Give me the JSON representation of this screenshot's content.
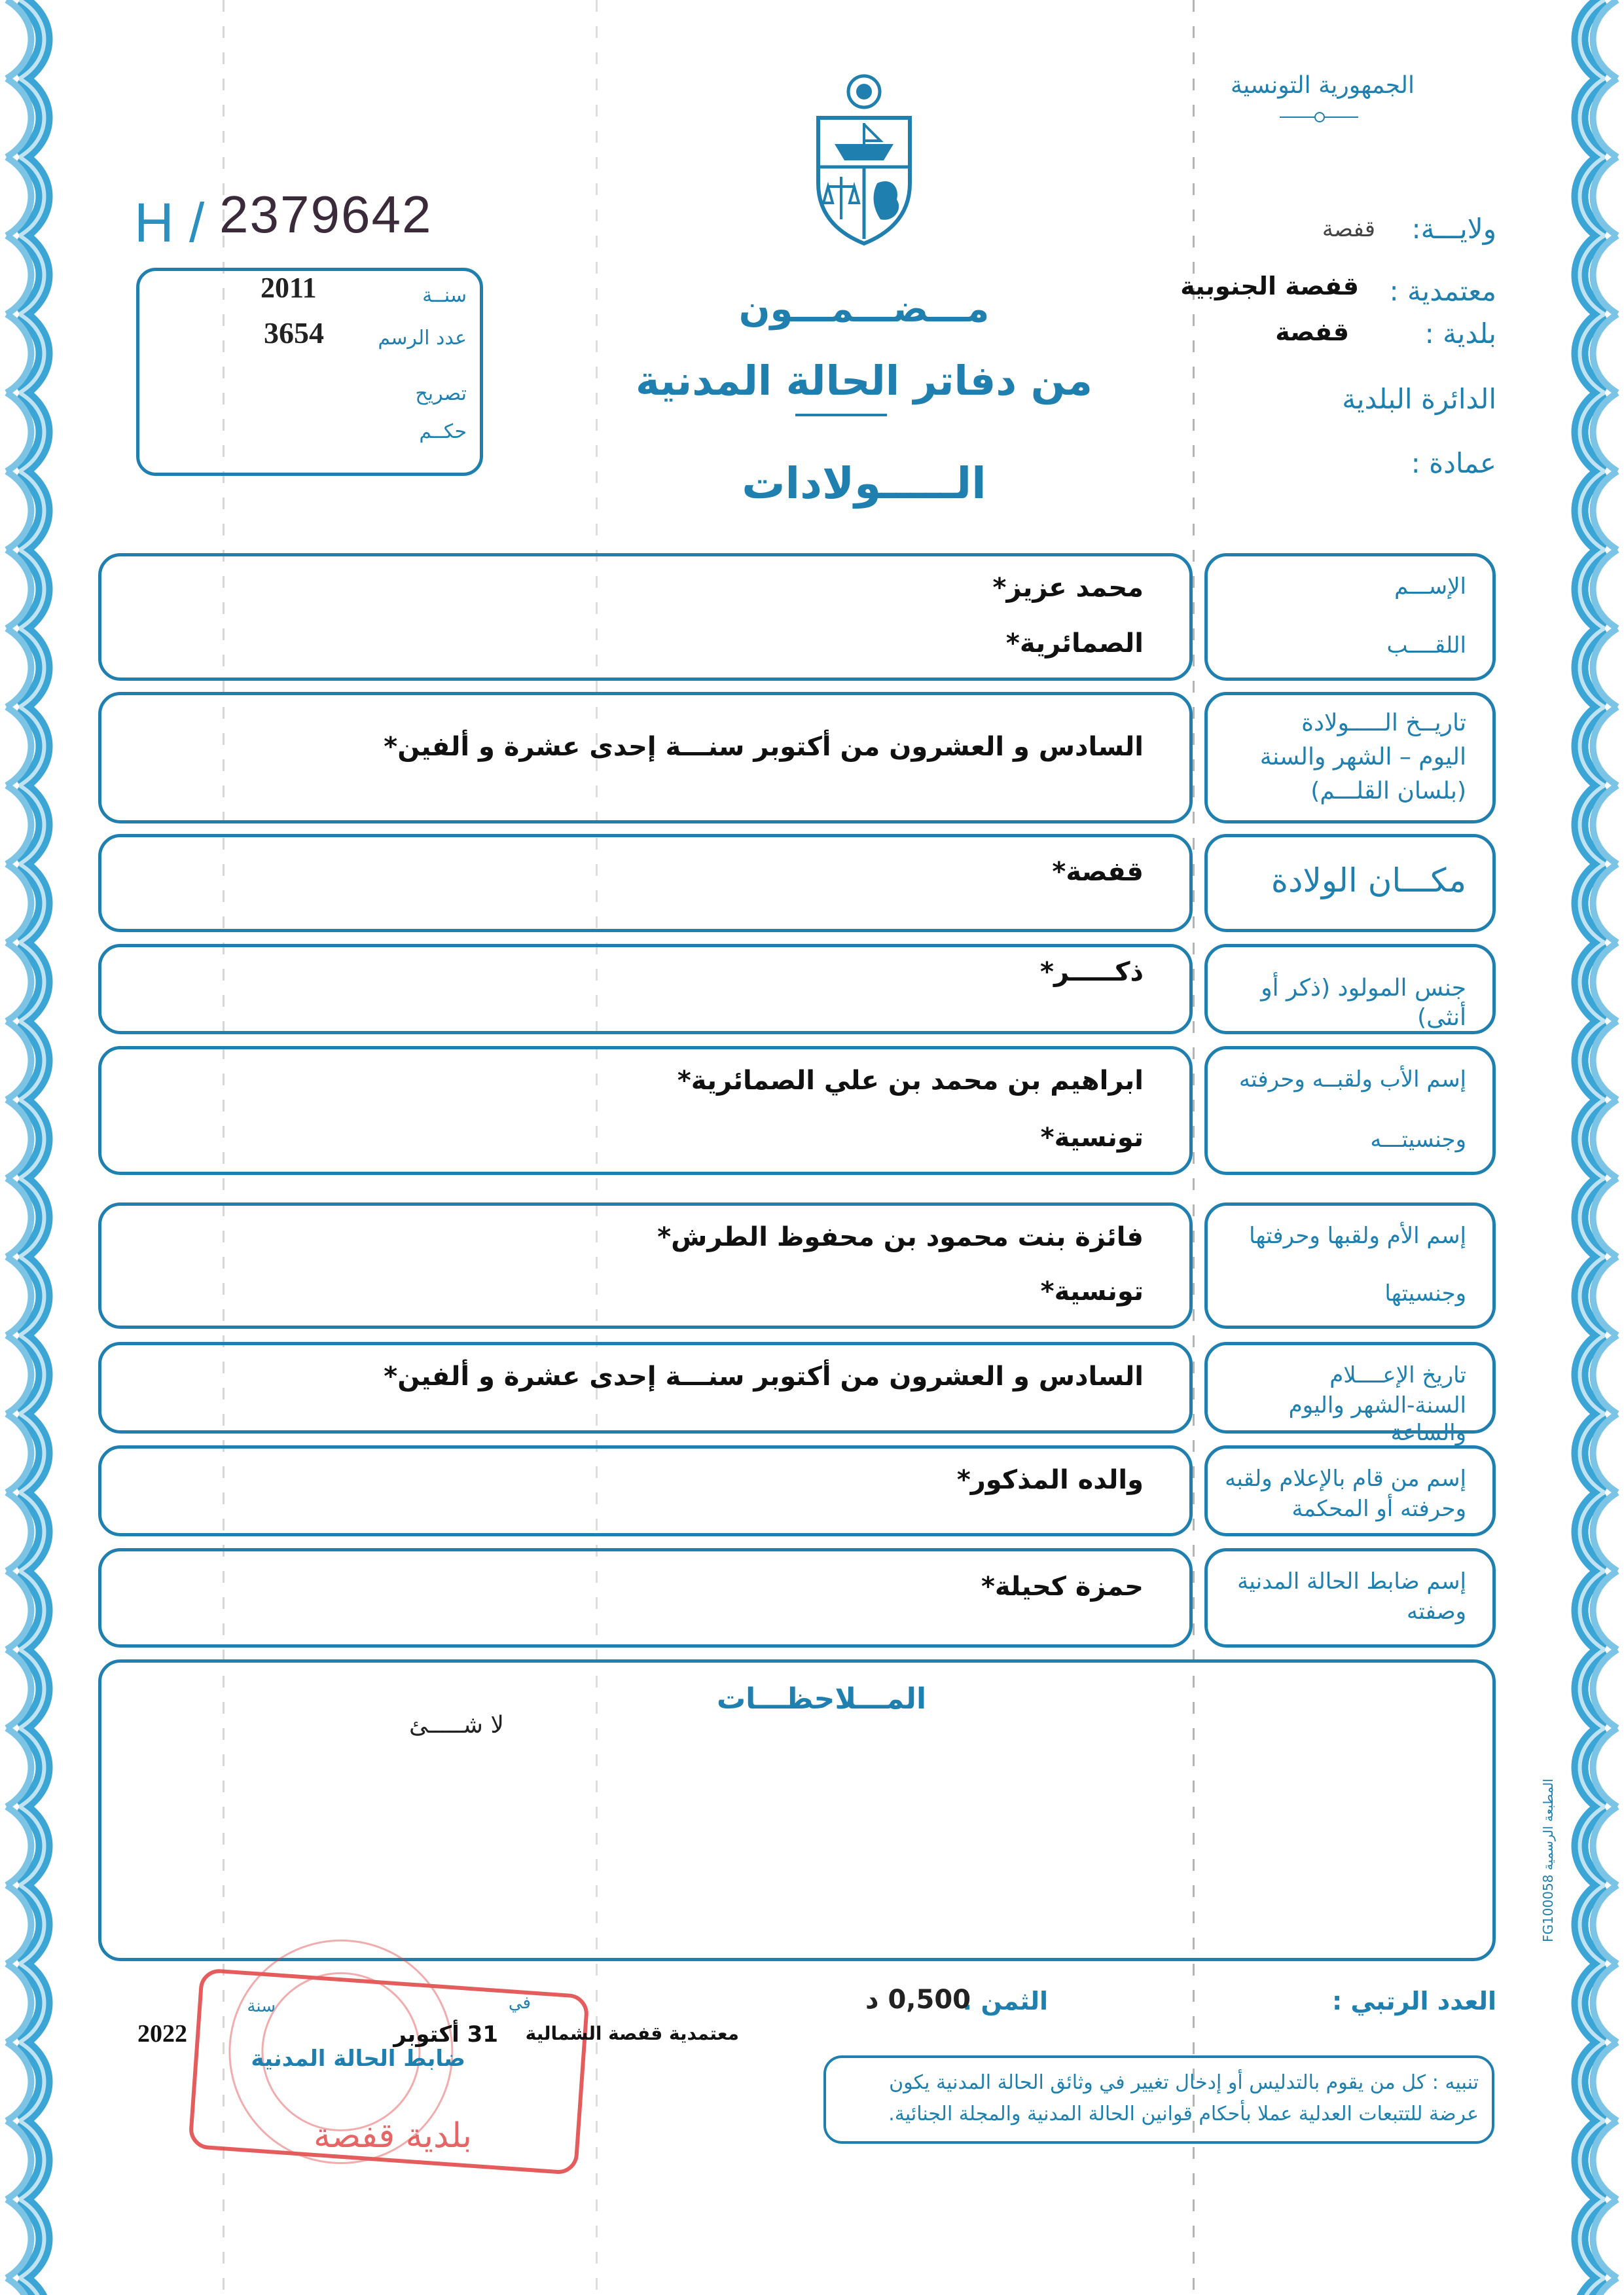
{
  "header_right": {
    "country": "الجمهورية التونسية",
    "governorate_label": "ولايـــة:",
    "governorate_value": "قفصة",
    "delegation_label": "معتمدية :",
    "delegation_value": "قفصة الجنوبية",
    "municipality_label": "بلدية :",
    "municipality_value": "قفصة",
    "district_label": "الدائرة البلدية",
    "sector_label": "عمادة :"
  },
  "serial": {
    "prefix": "H /",
    "number": "2379642"
  },
  "record_box": {
    "year_label": "سنــة",
    "year_value": "2011",
    "record_number_label": "عدد الرسم",
    "record_number_value": "3654",
    "declaration_label": "تصريح",
    "judgment_label": "حكــم"
  },
  "title": {
    "line1": "مـــضـــمـــون",
    "line2": "من دفاتر الحالة المدنية",
    "line3": "الـــــولادات"
  },
  "rows": [
    {
      "labels": [
        "الإســـم",
        "اللقــــب"
      ],
      "values": [
        "محمد عزيز*",
        "الصمائرية*"
      ]
    },
    {
      "labels": [
        "تاريــخ الـــــولادة",
        "اليوم – الشهر والسنة",
        "(بلسان القلـــم)"
      ],
      "values": [
        "السادس و العشرون من أكتوبر سنـــة إحدى عشرة و ألفين*"
      ]
    },
    {
      "labels": [
        "مكـــان الولادة"
      ],
      "values": [
        "قفصة*"
      ]
    },
    {
      "labels": [
        "جنس المولود (ذكر أو أنثى)"
      ],
      "values": [
        "ذكـــــر*"
      ]
    },
    {
      "labels": [
        "إسم الأب ولقبــه وحرفته",
        "وجنسيتـــه"
      ],
      "values": [
        "ابراهيم بن محمد بن علي  الصمائرية*",
        "تونسية*"
      ]
    },
    {
      "labels": [
        "إسم الأم ولقبها وحرفتها",
        "وجنسيتها"
      ],
      "values": [
        "فائزة بنت محمود بن محفوظ  الطرش*",
        "تونسية*"
      ]
    },
    {
      "labels": [
        "تاريخ  الإعــــلام",
        "السنة-الشهر واليوم والساعة"
      ],
      "values": [
        "السادس و العشرون من أكتوبر سنـــة إحدى عشرة و ألفين*"
      ]
    },
    {
      "labels": [
        "إسم من قام بالإعلام ولقبه",
        "وحرفته أو المحكمة"
      ],
      "values": [
        "والده  المذكور*"
      ]
    },
    {
      "labels": [
        "إسم ضابط الحالة المدنية",
        "وصفته"
      ],
      "values": [
        "حمزة كحيلة*"
      ]
    }
  ],
  "remarks": {
    "title": "المـــلاحظـــات",
    "value": "لا شـــــئ"
  },
  "footer": {
    "serial_label": "العدد الرتبي :",
    "price_label": "الثمن :",
    "price_value": "0,500 د",
    "notice": "تنبيه : كل من يقوم بالتدليس أو إدخال تغيير في وثائق الحالة المدنية يكون عرضة للتتبعات العدلية عملا بأحكام قوانين الحالة المدنية والمجلة الجنائية.",
    "issued_at": "معتمدية قفصة الشمالية",
    "in_label": "في",
    "date_day_month": "31 أكتوبر",
    "year_label": "سنة",
    "year_value": "2022",
    "signatory": "ضابط الحالة المدنية",
    "printer_code": "المطبعة الرسمية FG100058"
  },
  "stamp": {
    "text": "بلدية قفصة"
  },
  "colors": {
    "print_blue": "#1f80b0",
    "stamp_red": "#e0403f",
    "border_blue": "#3ba6d6"
  }
}
